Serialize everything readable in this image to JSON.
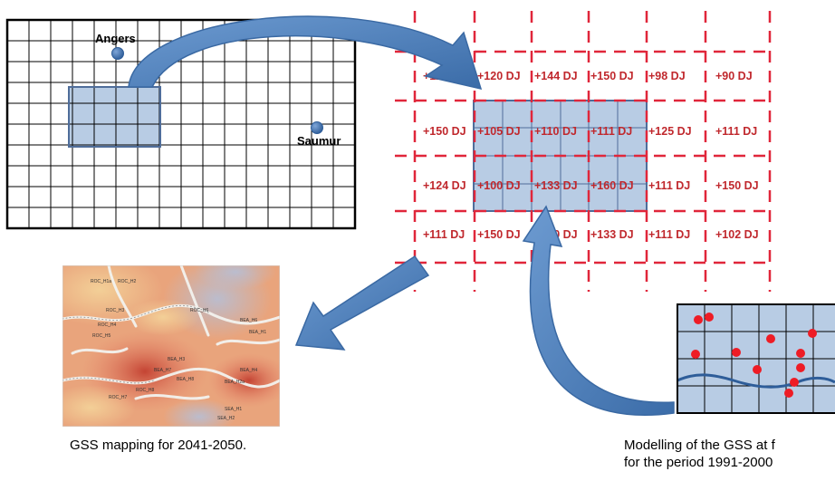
{
  "map": {
    "cities": [
      {
        "name": "Angers"
      },
      {
        "name": "Saumur"
      }
    ]
  },
  "climate_grid": {
    "rows": [
      [
        "+111 DJ",
        "+120 DJ",
        "+144 DJ",
        "+150 DJ",
        "+98 DJ",
        "+90 DJ"
      ],
      [
        "+150 DJ",
        "+105 DJ",
        "+110 DJ",
        "+111 DJ",
        "+125 DJ",
        "+111 DJ"
      ],
      [
        "+124 DJ",
        "+100 DJ",
        "+133 DJ",
        "+160 DJ",
        "+111 DJ",
        "+150 DJ"
      ],
      [
        "+111 DJ",
        "+150 DJ",
        "+100 DJ",
        "+133 DJ",
        "+111 DJ",
        "+102 DJ"
      ]
    ]
  },
  "gss_map": {
    "labels": [
      "ROC_H1a",
      "ROC_H2",
      "ROC_H3",
      "ROC_H4",
      "ROC_H5",
      "ROC_H6",
      "BEA_H6",
      "BEA_H1",
      "BEA_H3",
      "BEA_H7",
      "BEA_H8",
      "SEA_H1",
      "SEA_H2",
      "ROC_H7",
      "ROC_H8",
      "BEA_H2a",
      "BEA_H4"
    ]
  },
  "captions": {
    "left": "GSS mapping for 2041-2050.",
    "right_line1": "Modelling of the GSS at f",
    "right_line2": "for the period 1991-2000"
  },
  "colors": {
    "grid_fill": "#b8cce4",
    "grid_border": "#4f6d9a",
    "dash": "#e0263a",
    "dj_text": "#c0282d",
    "arrow": "#4a7ebb",
    "dot_red": "#ee1c25"
  }
}
